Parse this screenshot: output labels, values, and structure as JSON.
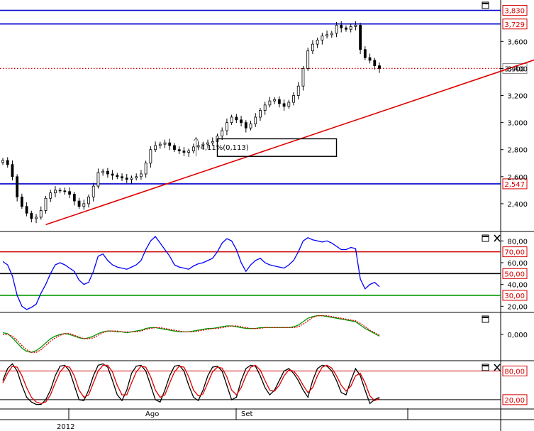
{
  "colors": {
    "price": "#000000",
    "resistance": "#0000cc",
    "support_line": "#0000cc",
    "dotted_level": "#cc0000",
    "trendline": "#e00000",
    "rsi": "#0000ff",
    "rsi_upper": "#cc0000",
    "rsi_mid": "#000000",
    "rsi_lower": "#009900",
    "macd": "#009900",
    "macd_signal": "#dd0000",
    "stoch_k": "#000000",
    "stoch_d": "#dd0000",
    "badge_text": "#d40000",
    "badge_fill": "#ffffff"
  },
  "icons": [
    "maximize-icon",
    "close-icon"
  ],
  "chart_data": [
    {
      "type": "candlestick",
      "panel": "price",
      "ylim": [
        2200,
        3880
      ],
      "yticks": [
        "3,600",
        "3,400",
        "3,200",
        "3,000",
        "2,800",
        "2,600",
        "2,400"
      ],
      "level_labels": [
        "3,830",
        "3,729",
        "3,400",
        "2,547"
      ],
      "levels": [
        {
          "value": 3830,
          "style": "solid",
          "color_key": "resistance"
        },
        {
          "value": 3729,
          "style": "solid",
          "color_key": "resistance"
        },
        {
          "value": 3400,
          "style": "dotted",
          "color_key": "dotted_level"
        },
        {
          "value": 2547,
          "style": "solid",
          "color_key": "support_line"
        }
      ],
      "trendline": {
        "from": [
          9,
          2245
        ],
        "to": [
          115,
          3505
        ]
      },
      "box": {
        "x": [
          45,
          70
        ],
        "y": [
          2750,
          2880
        ]
      },
      "annotation": "4,11%(0,113)",
      "series": [
        {
          "name": "close",
          "values": [
            2720,
            2690,
            2600,
            2450,
            2380,
            2330,
            2290,
            2300,
            2350,
            2440,
            2480,
            2500,
            2495,
            2490,
            2470,
            2420,
            2380,
            2400,
            2450,
            2530,
            2630,
            2640,
            2620,
            2610,
            2600,
            2590,
            2580,
            2590,
            2600,
            2620,
            2700,
            2800,
            2830,
            2840,
            2850,
            2830,
            2800,
            2790,
            2780,
            2790,
            2820,
            2830,
            2840,
            2850,
            2860,
            2900,
            2940,
            3000,
            3040,
            3020,
            3000,
            2960,
            2990,
            3040,
            3090,
            3130,
            3160,
            3170,
            3140,
            3120,
            3150,
            3200,
            3270,
            3400,
            3530,
            3580,
            3610,
            3640,
            3650,
            3660,
            3720,
            3700,
            3690,
            3710,
            3720,
            3540,
            3480,
            3460,
            3420,
            3400
          ]
        }
      ]
    },
    {
      "type": "line",
      "panel": "rsi",
      "ylim": [
        15,
        88
      ],
      "yticks": [
        "80,00",
        "60,00",
        "40,00",
        "20,00"
      ],
      "level_labels": [
        "70,00",
        "50,00",
        "30,00"
      ],
      "levels": [
        70,
        50,
        30
      ],
      "series": [
        {
          "values": [
            61,
            58,
            48,
            30,
            20,
            17,
            19,
            22,
            32,
            40,
            50,
            58,
            60,
            58,
            55,
            52,
            44,
            40,
            42,
            52,
            66,
            68,
            62,
            58,
            56,
            55,
            54,
            56,
            58,
            62,
            72,
            80,
            84,
            78,
            72,
            66,
            58,
            56,
            55,
            54,
            57,
            59,
            60,
            62,
            64,
            70,
            78,
            82,
            80,
            72,
            60,
            52,
            58,
            62,
            64,
            60,
            58,
            57,
            56,
            55,
            58,
            62,
            70,
            80,
            83,
            81,
            80,
            79,
            80,
            78,
            75,
            72,
            72,
            74,
            73,
            45,
            36,
            40,
            42,
            38
          ]
        }
      ]
    },
    {
      "type": "line",
      "panel": "macd",
      "ylim": [
        -0.03,
        0.025
      ],
      "yticks": [
        "0,000"
      ],
      "series": [
        {
          "values": [
            0.002,
            0.001,
            -0.004,
            -0.01,
            -0.016,
            -0.02,
            -0.021,
            -0.019,
            -0.015,
            -0.01,
            -0.005,
            -0.002,
            0.0,
            0.001,
            0.0,
            -0.002,
            -0.004,
            -0.005,
            -0.004,
            -0.002,
            0.001,
            0.003,
            0.004,
            0.004,
            0.003,
            0.003,
            0.002,
            0.003,
            0.004,
            0.005,
            0.007,
            0.008,
            0.008,
            0.007,
            0.006,
            0.005,
            0.004,
            0.003,
            0.003,
            0.003,
            0.004,
            0.005,
            0.006,
            0.007,
            0.007,
            0.008,
            0.009,
            0.01,
            0.01,
            0.009,
            0.008,
            0.007,
            0.007,
            0.007,
            0.008,
            0.008,
            0.008,
            0.008,
            0.008,
            0.008,
            0.008,
            0.009,
            0.011,
            0.015,
            0.019,
            0.021,
            0.022,
            0.022,
            0.021,
            0.02,
            0.019,
            0.018,
            0.017,
            0.016,
            0.015,
            0.011,
            0.007,
            0.004,
            0.001,
            -0.002
          ]
        },
        {
          "values": [
            0.0,
            0.0,
            -0.002,
            -0.007,
            -0.013,
            -0.018,
            -0.021,
            -0.021,
            -0.018,
            -0.013,
            -0.008,
            -0.004,
            -0.001,
            0.001,
            0.001,
            -0.001,
            -0.003,
            -0.005,
            -0.005,
            -0.004,
            -0.001,
            0.002,
            0.004,
            0.004,
            0.004,
            0.003,
            0.003,
            0.003,
            0.003,
            0.004,
            0.006,
            0.007,
            0.008,
            0.008,
            0.007,
            0.006,
            0.005,
            0.004,
            0.003,
            0.003,
            0.003,
            0.004,
            0.005,
            0.006,
            0.007,
            0.007,
            0.008,
            0.009,
            0.01,
            0.01,
            0.009,
            0.008,
            0.007,
            0.007,
            0.007,
            0.008,
            0.008,
            0.008,
            0.008,
            0.008,
            0.008,
            0.008,
            0.009,
            0.012,
            0.016,
            0.02,
            0.022,
            0.022,
            0.022,
            0.021,
            0.02,
            0.019,
            0.018,
            0.017,
            0.016,
            0.013,
            0.009,
            0.005,
            0.002,
            -0.001
          ]
        }
      ]
    },
    {
      "type": "line",
      "panel": "stochastic",
      "ylim": [
        2,
        100
      ],
      "yticks": [],
      "level_labels": [
        "80,00",
        "20,00"
      ],
      "levels": [
        80,
        20
      ],
      "series": [
        {
          "values": [
            60,
            85,
            95,
            80,
            50,
            25,
            15,
            10,
            10,
            20,
            40,
            70,
            90,
            92,
            80,
            50,
            20,
            18,
            40,
            70,
            92,
            95,
            88,
            60,
            30,
            18,
            40,
            75,
            90,
            92,
            80,
            50,
            20,
            15,
            40,
            70,
            90,
            92,
            80,
            50,
            25,
            18,
            40,
            70,
            88,
            90,
            80,
            50,
            20,
            25,
            60,
            85,
            92,
            90,
            70,
            45,
            30,
            40,
            60,
            80,
            85,
            75,
            60,
            40,
            25,
            60,
            85,
            92,
            90,
            80,
            60,
            35,
            30,
            60,
            85,
            70,
            40,
            12,
            20,
            25
          ]
        },
        {
          "values": [
            55,
            75,
            90,
            88,
            70,
            45,
            25,
            15,
            12,
            15,
            30,
            55,
            78,
            90,
            88,
            70,
            40,
            25,
            30,
            55,
            80,
            92,
            92,
            78,
            50,
            30,
            30,
            55,
            78,
            90,
            88,
            68,
            40,
            25,
            30,
            55,
            78,
            90,
            88,
            68,
            40,
            28,
            32,
            55,
            78,
            88,
            86,
            68,
            40,
            30,
            45,
            70,
            88,
            92,
            82,
            60,
            40,
            38,
            50,
            70,
            82,
            80,
            68,
            50,
            35,
            45,
            70,
            88,
            92,
            86,
            70,
            50,
            38,
            48,
            70,
            75,
            55,
            28,
            18,
            22
          ]
        }
      ]
    }
  ],
  "x_axis": {
    "month_labels": [
      "Ago",
      "Set"
    ],
    "year_label": "2012"
  }
}
